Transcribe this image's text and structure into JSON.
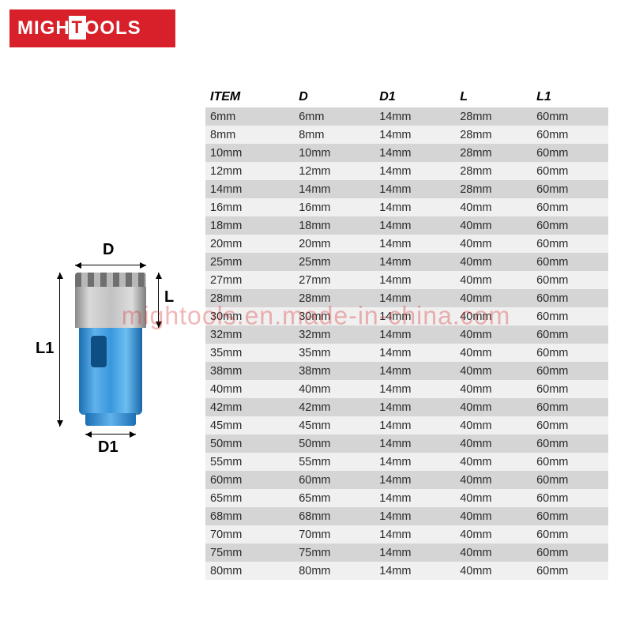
{
  "logo": {
    "left": "MIGH",
    "right": "OOLS"
  },
  "watermark": "mightools.en.made-in-china.com",
  "diagram": {
    "label_D": "D",
    "label_D1": "D1",
    "label_L": "L",
    "label_L1": "L1"
  },
  "table": {
    "columns": [
      "ITEM",
      "D",
      "D1",
      "L",
      "L1"
    ],
    "column_widths_pct": [
      22,
      20,
      20,
      19,
      19
    ],
    "header_fontsize": 16,
    "cell_fontsize": 14.5,
    "row_odd_bg": "#d5d5d5",
    "row_even_bg": "#f0f0f0",
    "text_color": "#2a2a2a",
    "rows": [
      [
        "6mm",
        "6mm",
        "14mm",
        "28mm",
        "60mm"
      ],
      [
        "8mm",
        "8mm",
        "14mm",
        "28mm",
        "60mm"
      ],
      [
        "10mm",
        "10mm",
        "14mm",
        "28mm",
        "60mm"
      ],
      [
        "12mm",
        "12mm",
        "14mm",
        "28mm",
        "60mm"
      ],
      [
        "14mm",
        "14mm",
        "14mm",
        "28mm",
        "60mm"
      ],
      [
        "16mm",
        "16mm",
        "14mm",
        "40mm",
        "60mm"
      ],
      [
        "18mm",
        "18mm",
        "14mm",
        "40mm",
        "60mm"
      ],
      [
        "20mm",
        "20mm",
        "14mm",
        "40mm",
        "60mm"
      ],
      [
        "25mm",
        "25mm",
        "14mm",
        "40mm",
        "60mm"
      ],
      [
        "27mm",
        "27mm",
        "14mm",
        "40mm",
        "60mm"
      ],
      [
        "28mm",
        "28mm",
        "14mm",
        "40mm",
        "60mm"
      ],
      [
        "30mm",
        "30mm",
        "14mm",
        "40mm",
        "60mm"
      ],
      [
        "32mm",
        "32mm",
        "14mm",
        "40mm",
        "60mm"
      ],
      [
        "35mm",
        "35mm",
        "14mm",
        "40mm",
        "60mm"
      ],
      [
        "38mm",
        "38mm",
        "14mm",
        "40mm",
        "60mm"
      ],
      [
        "40mm",
        "40mm",
        "14mm",
        "40mm",
        "60mm"
      ],
      [
        "42mm",
        "42mm",
        "14mm",
        "40mm",
        "60mm"
      ],
      [
        "45mm",
        "45mm",
        "14mm",
        "40mm",
        "60mm"
      ],
      [
        "50mm",
        "50mm",
        "14mm",
        "40mm",
        "60mm"
      ],
      [
        "55mm",
        "55mm",
        "14mm",
        "40mm",
        "60mm"
      ],
      [
        "60mm",
        "60mm",
        "14mm",
        "40mm",
        "60mm"
      ],
      [
        "65mm",
        "65mm",
        "14mm",
        "40mm",
        "60mm"
      ],
      [
        "68mm",
        "68mm",
        "14mm",
        "40mm",
        "60mm"
      ],
      [
        "70mm",
        "70mm",
        "14mm",
        "40mm",
        "60mm"
      ],
      [
        "75mm",
        "75mm",
        "14mm",
        "40mm",
        "60mm"
      ],
      [
        "80mm",
        "80mm",
        "14mm",
        "40mm",
        "60mm"
      ]
    ]
  },
  "colors": {
    "brand_red": "#d8202a",
    "brand_white": "#ffffff",
    "bit_blue_dark": "#1b6fb3",
    "bit_blue_light": "#5fb2ec",
    "metal_grey": "#b8b8b8",
    "watermark_red": "rgba(216,49,49,0.35)"
  }
}
